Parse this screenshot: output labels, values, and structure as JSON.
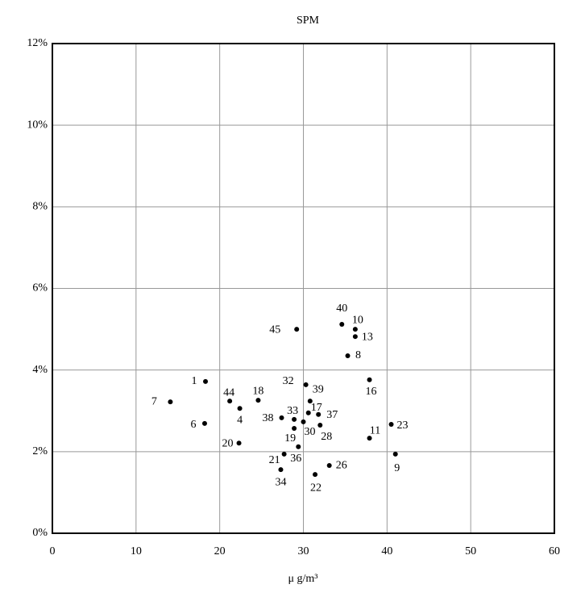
{
  "chart_data": {
    "type": "scatter",
    "title": "SPM",
    "x_label": "μ g/m³",
    "point_labels": [
      "1",
      "7",
      "6",
      "44",
      "4",
      "20",
      "18",
      "38",
      "33",
      "19",
      "21",
      "34",
      "36",
      "30",
      "17",
      "39",
      "32",
      "37",
      "28",
      "45",
      "40",
      "10",
      "13",
      "8",
      "16",
      "11",
      "23",
      "9",
      "26",
      "22"
    ],
    "x": [
      18.3,
      14.1,
      18.2,
      21.2,
      22.4,
      22.3,
      24.6,
      27.4,
      28.9,
      28.9,
      27.7,
      27.3,
      29.4,
      30.0,
      30.6,
      30.8,
      30.3,
      31.8,
      32.0,
      29.2,
      34.6,
      36.2,
      36.2,
      35.3,
      37.9,
      37.9,
      40.5,
      41.0,
      33.1,
      31.4
    ],
    "values": [
      3.72,
      3.22,
      2.69,
      3.24,
      3.06,
      2.21,
      3.26,
      2.83,
      2.79,
      2.57,
      1.94,
      1.56,
      2.12,
      2.73,
      2.95,
      3.24,
      3.64,
      2.91,
      2.65,
      5.0,
      5.12,
      5.0,
      4.82,
      4.35,
      3.76,
      2.33,
      2.67,
      1.94,
      1.66,
      1.44
    ],
    "color": "#000000",
    "xlim": [
      0,
      60
    ],
    "xticks": [
      0,
      10,
      20,
      30,
      40,
      50,
      60
    ],
    "ylim": [
      0,
      12
    ],
    "yticks": [
      {
        "value": 0,
        "label": "0%"
      },
      {
        "value": 2,
        "label": "2%"
      },
      {
        "value": 4,
        "label": "4%"
      },
      {
        "value": 6,
        "label": "6%"
      },
      {
        "value": 8,
        "label": "8%"
      },
      {
        "value": 10,
        "label": "10%"
      },
      {
        "value": 12,
        "label": "12%"
      }
    ],
    "grid": true
  }
}
